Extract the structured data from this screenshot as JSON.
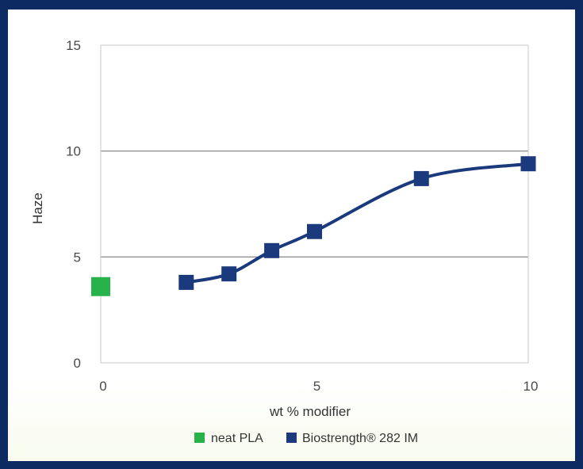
{
  "chart_data": {
    "type": "scatter",
    "title": "",
    "xlabel": "wt % modifier",
    "ylabel": "Haze",
    "xlim": [
      0,
      10
    ],
    "ylim": [
      0,
      15
    ],
    "x_ticks": [
      "0",
      "5",
      "10"
    ],
    "y_ticks": [
      "0",
      "5",
      "10",
      "15"
    ],
    "grid": "horizontal",
    "legend_position": "bottom",
    "series": [
      {
        "name": "neat PLA",
        "color": "#27b24a",
        "marker": "square",
        "line": false,
        "points": [
          {
            "x": 0,
            "y": 3.6
          }
        ]
      },
      {
        "name": "Biostrength® 282 IM",
        "color": "#1b3a7e",
        "marker": "square",
        "line": true,
        "points": [
          {
            "x": 2,
            "y": 3.8
          },
          {
            "x": 3,
            "y": 4.2
          },
          {
            "x": 4,
            "y": 5.3
          },
          {
            "x": 5,
            "y": 6.2
          },
          {
            "x": 7.5,
            "y": 8.7
          },
          {
            "x": 10,
            "y": 9.4
          }
        ]
      }
    ]
  }
}
